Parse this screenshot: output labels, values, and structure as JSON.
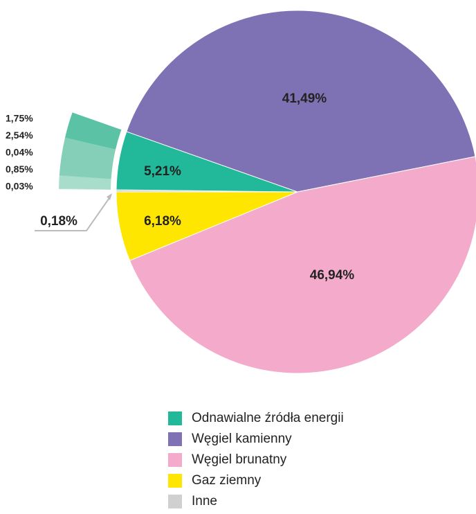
{
  "chart_data": {
    "type": "pie",
    "categories": [
      "Odnawialne źródła energii",
      "Węgiel kamienny",
      "Węgiel brunatny",
      "Gaz ziemny",
      "Inne"
    ],
    "values": [
      5.21,
      41.49,
      46.94,
      6.18,
      0.18
    ],
    "value_labels": [
      "5,21%",
      "41,49%",
      "46,94%",
      "6,18%",
      "0,18%"
    ],
    "colors": [
      "#22b89a",
      "#7f72b4",
      "#f4abcb",
      "#ffe600",
      "#d0d0d0"
    ],
    "breakdown": {
      "values": [
        1.75,
        2.54,
        0.04,
        0.85,
        0.03
      ],
      "value_labels": [
        "1,75%",
        "2,54%",
        "0,04%",
        "0,85%",
        "0,03%"
      ],
      "colors": [
        "#5cc2a6",
        "#85cfb8",
        "#95d5c0",
        "#a8ddcc",
        "#c5e8dc"
      ]
    }
  }
}
